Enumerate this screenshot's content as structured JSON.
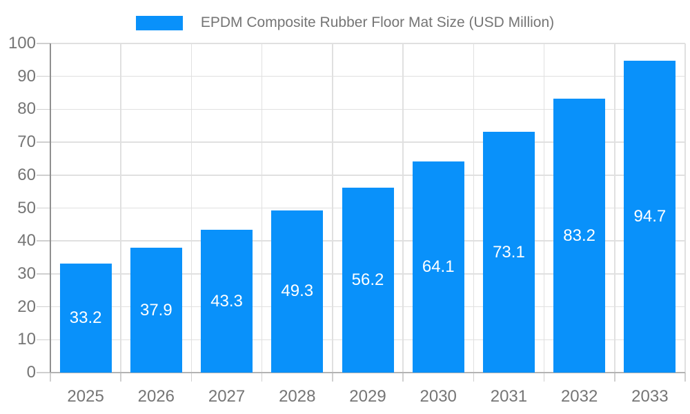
{
  "chart_data": {
    "type": "bar",
    "title": "EPDM Composite Rubber Floor Mat Size (USD Million)",
    "legend": [
      "EPDM Composite Rubber Floor Mat Size (USD Million)"
    ],
    "legend_position": "top",
    "categories": [
      "2025",
      "2026",
      "2027",
      "2028",
      "2029",
      "2030",
      "2031",
      "2032",
      "2033"
    ],
    "values": [
      33.2,
      37.9,
      43.3,
      49.3,
      56.2,
      64.1,
      73.1,
      83.2,
      94.7
    ],
    "bar_labels": [
      "33.2",
      "37.9",
      "43.3",
      "49.3",
      "56.2",
      "64.1",
      "73.1",
      "83.2",
      "94.7"
    ],
    "xlabel": "",
    "ylabel": "",
    "ylim": [
      0,
      100
    ],
    "yticks": [
      0,
      10,
      20,
      30,
      40,
      50,
      60,
      70,
      80,
      90,
      100
    ],
    "grid": true
  },
  "colors": {
    "bar": "#0991fa",
    "grid": "#e0e0e0",
    "tick": "#cfcfcf",
    "axis_y": "#8f8f8f",
    "axis_x": "#b3b3b3",
    "text": "#757575",
    "bar_label": "#ffffff",
    "background": "#ffffff"
  }
}
